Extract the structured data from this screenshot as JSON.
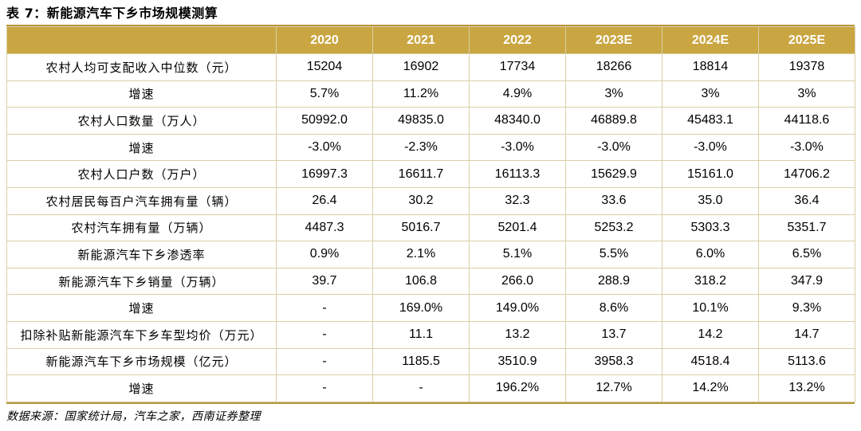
{
  "title": "表 7：新能源汽车下乡市场规模测算",
  "header": {
    "corner": "",
    "years": [
      "2020",
      "2021",
      "2022",
      "2023E",
      "2024E",
      "2025E"
    ]
  },
  "rows": [
    {
      "label": "农村人均可支配收入中位数（元）",
      "values": [
        "15204",
        "16902",
        "17734",
        "18266",
        "18814",
        "19378"
      ]
    },
    {
      "label": "增速",
      "values": [
        "5.7%",
        "11.2%",
        "4.9%",
        "3%",
        "3%",
        "3%"
      ]
    },
    {
      "label": "农村人口数量（万人）",
      "values": [
        "50992.0",
        "49835.0",
        "48340.0",
        "46889.8",
        "45483.1",
        "44118.6"
      ]
    },
    {
      "label": "增速",
      "values": [
        "-3.0%",
        "-2.3%",
        "-3.0%",
        "-3.0%",
        "-3.0%",
        "-3.0%"
      ]
    },
    {
      "label": "农村人口户数（万户）",
      "values": [
        "16997.3",
        "16611.7",
        "16113.3",
        "15629.9",
        "15161.0",
        "14706.2"
      ]
    },
    {
      "label": "农村居民每百户汽车拥有量（辆）",
      "values": [
        "26.4",
        "30.2",
        "32.3",
        "33.6",
        "35.0",
        "36.4"
      ]
    },
    {
      "label": "农村汽车拥有量（万辆）",
      "values": [
        "4487.3",
        "5016.7",
        "5201.4",
        "5253.2",
        "5303.3",
        "5351.7"
      ]
    },
    {
      "label": "新能源汽车下乡渗透率",
      "values": [
        "0.9%",
        "2.1%",
        "5.1%",
        "5.5%",
        "6.0%",
        "6.5%"
      ]
    },
    {
      "label": "新能源汽车下乡销量（万辆）",
      "values": [
        "39.7",
        "106.8",
        "266.0",
        "288.9",
        "318.2",
        "347.9"
      ]
    },
    {
      "label": "增速",
      "values": [
        "-",
        "169.0%",
        "149.0%",
        "8.6%",
        "10.1%",
        "9.3%"
      ]
    },
    {
      "label": "扣除补贴新能源汽车下乡车型均价（万元）",
      "values": [
        "-",
        "11.1",
        "13.2",
        "13.7",
        "14.2",
        "14.7"
      ]
    },
    {
      "label": "新能源汽车下乡市场规模（亿元）",
      "values": [
        "-",
        "1185.5",
        "3510.9",
        "3958.3",
        "4518.4",
        "5113.6"
      ]
    },
    {
      "label": "增速",
      "values": [
        "-",
        "-",
        "196.2%",
        "12.7%",
        "14.2%",
        "13.2%"
      ]
    }
  ],
  "source": "数据来源：国家统计局，汽车之家，西南证券整理",
  "colors": {
    "header_bg": "#c9a642",
    "header_text": "#ffffff",
    "rule": "#b8963a",
    "grid": "#d9cfa8"
  }
}
